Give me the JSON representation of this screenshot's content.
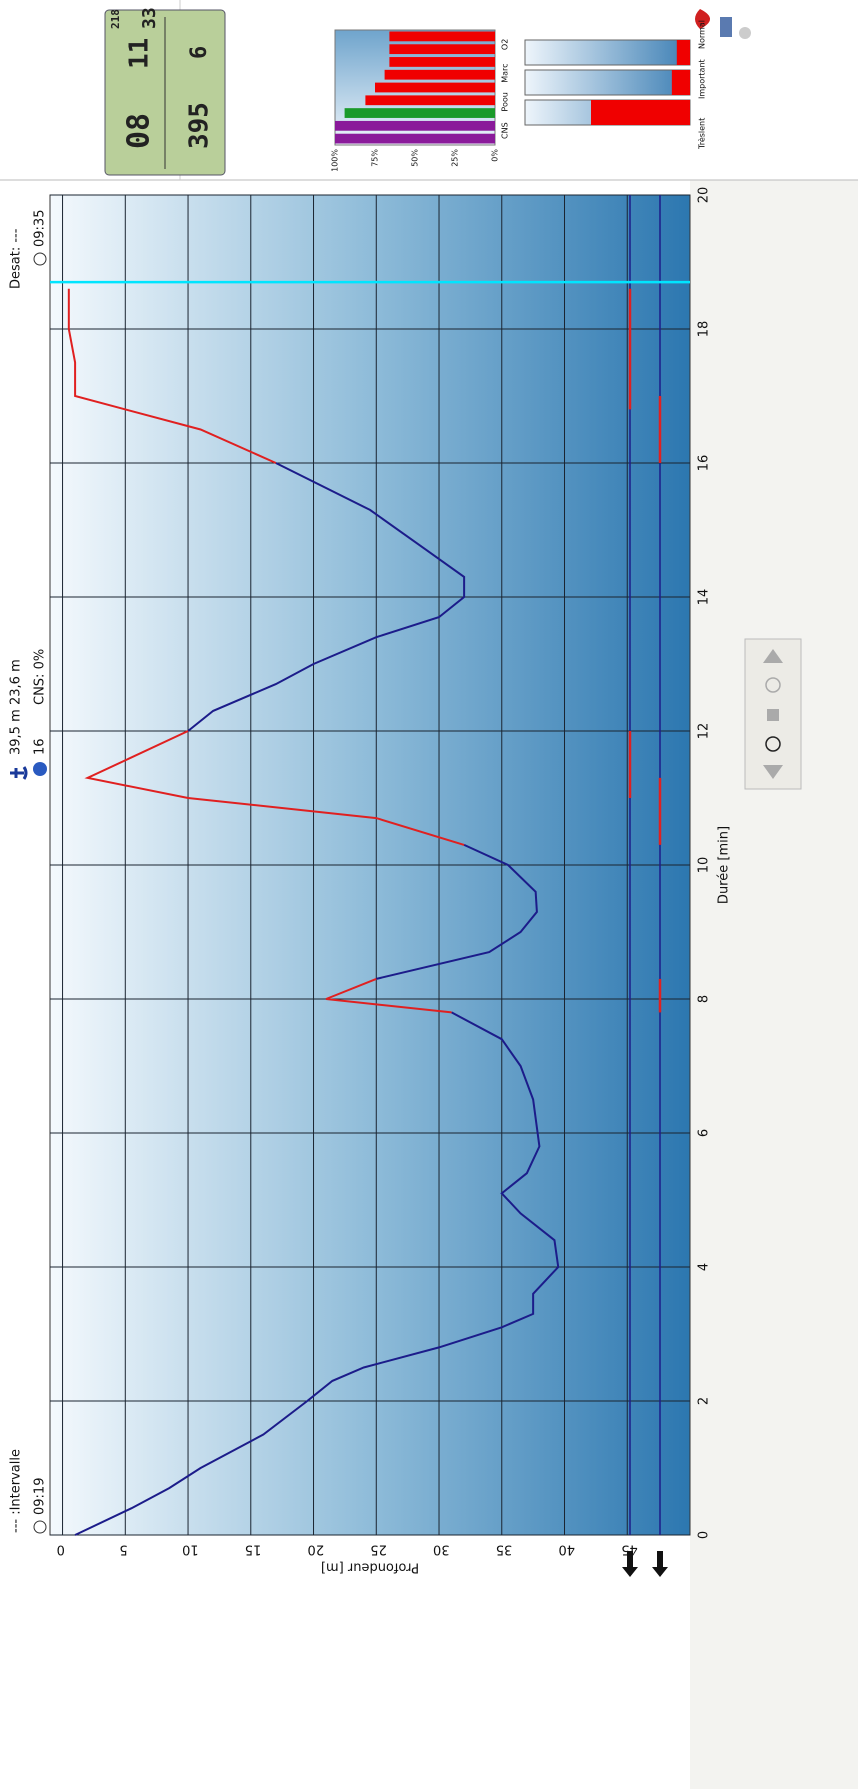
{
  "header": {
    "interval_label": "--- :Intervalle",
    "start_time": "09:19",
    "max_depth": "39,5 m",
    "dive_time": "16",
    "avg_depth": "23,6 m",
    "cns": "CNS: 0%",
    "desat": "Desat: ---",
    "end_time": "09:35"
  },
  "chart_data": {
    "type": "line",
    "x_label": "Durée [min]",
    "y_label": "Profondeur [m]",
    "x": [
      0,
      0.4,
      0.7,
      1,
      1.5,
      2,
      2.3,
      2.5,
      2.8,
      3.1,
      3.3,
      3.6,
      4,
      4.4,
      4.8,
      5.1,
      5.4,
      5.8,
      6.5,
      7,
      7.4,
      7.8,
      8,
      8.3,
      8.7,
      9,
      9.3,
      9.6,
      10,
      10.3,
      10.7,
      11,
      11.3,
      12,
      12.3,
      12.7,
      13,
      13.4,
      13.7,
      14,
      14.3,
      14.7,
      15.3,
      16,
      16.5,
      17,
      17.5,
      18,
      18.6
    ],
    "series": [
      {
        "color": "#1c1c8a",
        "values": [
          1,
          5.5,
          8.5,
          11,
          16,
          19.5,
          21.5,
          24,
          30,
          35,
          37.5,
          37.5,
          39.5,
          39.2,
          36.5,
          35,
          37,
          38,
          37.5,
          36.5,
          35,
          31,
          null,
          25,
          34,
          36.5,
          37.8,
          37.7,
          35.5,
          32,
          null,
          null,
          null,
          10,
          12,
          17,
          20,
          25,
          30,
          32,
          32,
          29,
          24.5,
          17,
          null,
          null,
          null,
          null,
          null
        ]
      },
      {
        "color": "#e02020",
        "values": [
          null,
          null,
          null,
          null,
          null,
          null,
          null,
          null,
          null,
          null,
          null,
          null,
          null,
          null,
          null,
          null,
          null,
          null,
          null,
          null,
          null,
          31,
          21,
          25,
          null,
          null,
          null,
          null,
          null,
          32,
          25,
          10,
          2,
          10,
          null,
          null,
          null,
          null,
          null,
          null,
          null,
          null,
          null,
          17,
          11,
          1,
          1,
          0.5,
          0.5
        ]
      }
    ],
    "xlim": [
      0,
      20
    ],
    "ylim": [
      -1,
      50
    ],
    "y_inverted": true,
    "xticks": [
      0,
      2,
      4,
      6,
      8,
      10,
      12,
      14,
      16,
      18,
      20
    ],
    "yticks": [
      0,
      5,
      10,
      15,
      20,
      25,
      30,
      35,
      40,
      45
    ],
    "grid": true,
    "cursor_x": 18.7,
    "cursor_color": "#00e5ff",
    "alarm_color": "#e02020",
    "alarm_rows": [
      [
        [
          11,
          12
        ],
        [
          16.8,
          18.6
        ]
      ],
      [
        [
          7.8,
          8.3
        ],
        [
          10.3,
          11.3
        ],
        [
          16,
          17
        ]
      ]
    ]
  },
  "computer_display": {
    "time": "08",
    "temp": "395",
    "depth": "11",
    "ndl": "6",
    "max": "218",
    "deco": "33"
  },
  "saturation_chart": {
    "values": [
      100,
      100,
      94,
      81,
      75,
      69,
      66,
      66,
      66
    ],
    "colors": [
      "#8a1a9a",
      "#8a1a9a",
      "#1a9a2a",
      "#f00000",
      "#f00000",
      "#f00000",
      "#f00000",
      "#f00000",
      "#f00000"
    ],
    "ylim": [
      0,
      100
    ],
    "yticks": [
      {
        "value": 0,
        "label": "0%"
      },
      {
        "value": 25,
        "label": "25%"
      },
      {
        "value": 50,
        "label": "50%"
      },
      {
        "value": 75,
        "label": "75%"
      },
      {
        "value": 100,
        "label": "100%"
      }
    ],
    "group_labels": [
      "CNS",
      "Poou",
      "Marc",
      "O2"
    ]
  },
  "tissue_chart": {
    "values": [
      60,
      11,
      8
    ],
    "labels": [
      "Trèslent",
      "Important",
      "Normal"
    ],
    "ylim": [
      0,
      100
    ]
  }
}
